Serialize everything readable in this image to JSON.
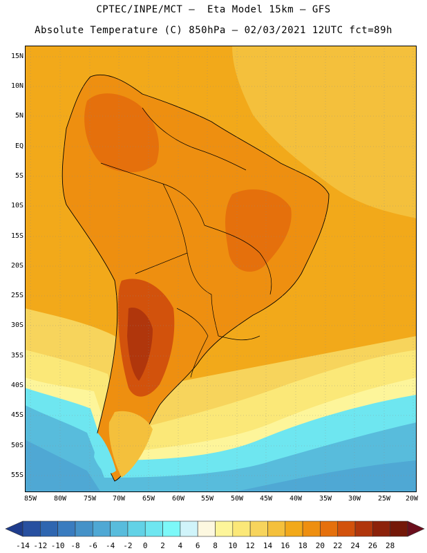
{
  "title_line1": "CPTEC/INPE/MCT —  Eta Model 15km — GFS",
  "title_line2": "Absolute Temperature (C) 850hPa — 02/03/2021 12UTC fct=89h",
  "lat_labels": [
    "15N",
    "10N",
    "5N",
    "EQ",
    "5S",
    "10S",
    "15S",
    "20S",
    "25S",
    "30S",
    "35S",
    "40S",
    "45S",
    "50S",
    "55S"
  ],
  "lon_labels": [
    "85W",
    "80W",
    "75W",
    "70W",
    "65W",
    "60W",
    "55W",
    "50W",
    "45W",
    "40W",
    "35W",
    "30W",
    "25W",
    "20W"
  ],
  "colorbar": {
    "labels": [
      "-14",
      "-12",
      "-10",
      "-8",
      "-6",
      "-4",
      "-2",
      "0",
      "2",
      "4",
      "6",
      "8",
      "10",
      "12",
      "14",
      "16",
      "18",
      "20",
      "22",
      "24",
      "26",
      "28"
    ],
    "colors": [
      "#1e3c8c",
      "#2850a0",
      "#2f66b0",
      "#3a7cbf",
      "#4592c8",
      "#4fa8d4",
      "#58bcdc",
      "#62d2e6",
      "#6ee6f0",
      "#7cf8f8",
      "#d0f4fa",
      "#fdf8e0",
      "#fdf59a",
      "#fbe878",
      "#f7d45c",
      "#f4c03c",
      "#f2a91a",
      "#ee8f10",
      "#e5700c",
      "#d2520c",
      "#b0360c",
      "#8c220a",
      "#741808",
      "#6b0e1c"
    ]
  },
  "map_colors": {
    "ocean": "#f2a91a",
    "land": "#ee8f10",
    "hot": "#e5700c",
    "hotter": "#d2520c",
    "mild": "#f4c03c",
    "cool": "#f7d45c",
    "cold1": "#fbe878",
    "cold2": "#fdf59a",
    "cold3": "#d0f4fa",
    "cold4": "#6ee6f0",
    "cold5": "#58bcdc",
    "cold6": "#4fa8d4"
  }
}
